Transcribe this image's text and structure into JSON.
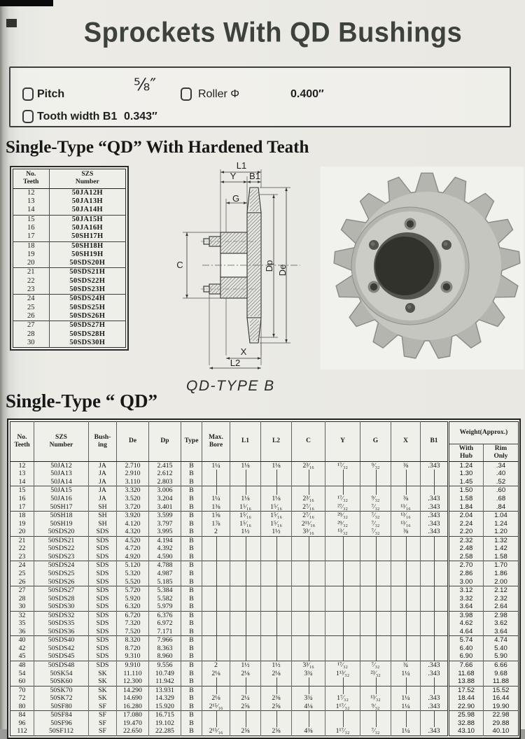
{
  "page": {
    "title": "Sprockets With QD Bushings"
  },
  "specs": {
    "pitch_label": "Pitch",
    "pitch_value": "⅝″",
    "roller_label": "Roller Φ",
    "roller_value": "0.400″",
    "tooth_label": "Tooth width B1",
    "tooth_value": "0.343″"
  },
  "section1": {
    "title": "Single-Type “QD” With Hardened Teath"
  },
  "hardened_table": {
    "headers": [
      "No.\nTeeth",
      "SZS\nNumber"
    ],
    "groups": [
      [
        [
          "12",
          "50JA12H"
        ],
        [
          "13",
          "50JA13H"
        ],
        [
          "14",
          "50JA14H"
        ]
      ],
      [
        [
          "15",
          "50JA15H"
        ],
        [
          "16",
          "50JA16H"
        ],
        [
          "17",
          "50SH17H"
        ]
      ],
      [
        [
          "18",
          "50SH18H"
        ],
        [
          "19",
          "50SH19H"
        ],
        [
          "20",
          "50SDS20H"
        ]
      ],
      [
        [
          "21",
          "50SDS21H"
        ],
        [
          "22",
          "50SDS22H"
        ],
        [
          "23",
          "50SDS23H"
        ]
      ],
      [
        [
          "24",
          "50SDS24H"
        ],
        [
          "25",
          "50SDS25H"
        ],
        [
          "26",
          "50SDS26H"
        ]
      ],
      [
        [
          "27",
          "50SDS27H"
        ],
        [
          "28",
          "50SDS28H"
        ],
        [
          "30",
          "50SDS30H"
        ]
      ]
    ]
  },
  "drawing": {
    "labels": [
      "L1",
      "Y",
      "B1",
      "G",
      "C",
      "Dp",
      "De",
      "X",
      "L2"
    ],
    "caption": "QD-TYPE B"
  },
  "section2": {
    "title": "Single-Type “ QD”"
  },
  "main_table": {
    "headers": [
      "No.\nTeeth",
      "SZS\nNumber",
      "Bush-\ning",
      "De",
      "Dp",
      "Type",
      "Max.\nBore",
      "L1",
      "L2",
      "C",
      "Y",
      "G",
      "X",
      "B1"
    ],
    "weight_group": "Weight(Approx.)",
    "weight_sub": [
      "With\nHub",
      "Rim\nOnly"
    ],
    "groups": [
      [
        [
          "12",
          "50JA12",
          "JA",
          "2.710",
          "2.415",
          "B",
          "1¼",
          "1⅛",
          "1⅛",
          "2³⁄₁₆",
          "¹⁷⁄₃₂",
          "⁹⁄₃₂",
          "⅜",
          ".343",
          "1.24",
          ".34"
        ],
        [
          "13",
          "50JA13",
          "JA",
          "2.910",
          "2.612",
          "B",
          "|",
          "|",
          "|",
          "|",
          "|",
          "|",
          "|",
          "|",
          "1.30",
          ".40"
        ],
        [
          "14",
          "50JA14",
          "JA",
          "3.110",
          "2.803",
          "B",
          "|",
          "|",
          "|",
          "|",
          "|",
          "|",
          "|",
          "|",
          "1.45",
          ".52"
        ]
      ],
      [
        [
          "15",
          "50JA15",
          "JA",
          "3.320",
          "3.006",
          "B",
          "|",
          "|",
          "|",
          "|",
          "|",
          "|",
          "|",
          "|",
          "1.50",
          ".60"
        ],
        [
          "16",
          "50JA16",
          "JA",
          "3.520",
          "3.204",
          "B",
          "1¼",
          "1⅛",
          "1⅛",
          "2³⁄₁₆",
          "¹⁷⁄₃₂",
          "⁹⁄₃₂",
          "⅜",
          ".343",
          "1.58",
          ".68"
        ],
        [
          "17",
          "50SH17",
          "SH",
          "3.720",
          "3.401",
          "B",
          "1⅜",
          "1⁵⁄₁₆",
          "1⁵⁄₁₆",
          "2⁷⁄₁₆",
          "²⁷⁄₃₂",
          "⁷⁄₃₂",
          "¹³⁄₁₆",
          ".343",
          "1.84",
          ".84"
        ]
      ],
      [
        [
          "18",
          "50SH18",
          "SH",
          "3.920",
          "3.599",
          "B",
          "1⅝",
          "1⁵⁄₁₆",
          "1⁵⁄₁₆",
          "2⁷⁄₁₆",
          "²⁹⁄₃₂",
          "⁷⁄₃₂",
          "¹³⁄₁₆",
          ".343",
          "2.04",
          "1.04"
        ],
        [
          "19",
          "50SH19",
          "SH",
          "4.120",
          "3.797",
          "B",
          "1⅞",
          "1⁵⁄₁₆",
          "1⁵⁄₁₆",
          "2¹¹⁄₁₆",
          "²⁹⁄₃₂",
          "⁷⁄₃₂",
          "¹³⁄₁₆",
          ".343",
          "2.24",
          "1.24"
        ],
        [
          "20",
          "50SDS20",
          "SDS",
          "4.320",
          "3.995",
          "B",
          "2",
          "1½",
          "1½",
          "3³⁄₁₆",
          "¹³⁄₃₂",
          "⁷⁄₃₂",
          "⅜",
          ".343",
          "2.20",
          "1.20"
        ]
      ],
      [
        [
          "21",
          "50SDS21",
          "SDS",
          "4.520",
          "4.194",
          "B",
          "|",
          "|",
          "|",
          "|",
          "|",
          "|",
          "|",
          "|",
          "2.32",
          "1.32"
        ],
        [
          "22",
          "50SDS22",
          "SDS",
          "4.720",
          "4.392",
          "B",
          "|",
          "|",
          "|",
          "|",
          "|",
          "|",
          "|",
          "|",
          "2.48",
          "1.42"
        ],
        [
          "23",
          "50SDS23",
          "SDS",
          "4.920",
          "4.590",
          "B",
          "|",
          "|",
          "|",
          "|",
          "|",
          "|",
          "|",
          "|",
          "2.58",
          "1.58"
        ]
      ],
      [
        [
          "24",
          "50SDS24",
          "SDS",
          "5.120",
          "4.788",
          "B",
          "|",
          "|",
          "|",
          "|",
          "|",
          "|",
          "|",
          "|",
          "2.70",
          "1.70"
        ],
        [
          "25",
          "50SDS25",
          "SDS",
          "5.320",
          "4.987",
          "B",
          "|",
          "|",
          "|",
          "|",
          "|",
          "|",
          "|",
          "|",
          "2.86",
          "1.86"
        ],
        [
          "26",
          "50SDS26",
          "SDS",
          "5.520",
          "5.185",
          "B",
          "|",
          "|",
          "|",
          "|",
          "|",
          "|",
          "|",
          "|",
          "3.00",
          "2.00"
        ]
      ],
      [
        [
          "27",
          "50SDS27",
          "SDS",
          "5.720",
          "5.384",
          "B",
          "|",
          "|",
          "|",
          "|",
          "|",
          "|",
          "|",
          "|",
          "3.12",
          "2.12"
        ],
        [
          "28",
          "50SDS28",
          "SDS",
          "5.920",
          "5.582",
          "B",
          "|",
          "|",
          "|",
          "|",
          "|",
          "|",
          "|",
          "|",
          "3.32",
          "2.32"
        ],
        [
          "30",
          "50SDS30",
          "SDS",
          "6.320",
          "5.979",
          "B",
          "|",
          "|",
          "|",
          "|",
          "|",
          "|",
          "|",
          "|",
          "3.64",
          "2.64"
        ]
      ],
      [
        [
          "32",
          "50SDS32",
          "SDS",
          "6.720",
          "6.376",
          "B",
          "|",
          "|",
          "|",
          "|",
          "|",
          "|",
          "|",
          "|",
          "3.98",
          "2.98"
        ],
        [
          "35",
          "50SDS35",
          "SDS",
          "7.320",
          "6.972",
          "B",
          "|",
          "|",
          "|",
          "|",
          "|",
          "|",
          "|",
          "|",
          "4.62",
          "3.62"
        ],
        [
          "36",
          "50SDS36",
          "SDS",
          "7.520",
          "7.171",
          "B",
          "|",
          "|",
          "|",
          "|",
          "|",
          "|",
          "|",
          "|",
          "4.64",
          "3.64"
        ]
      ],
      [
        [
          "40",
          "50SDS40",
          "SDS",
          "8.320",
          "7.966",
          "B",
          "|",
          "|",
          "|",
          "|",
          "|",
          "|",
          "|",
          "|",
          "5.74",
          "4.74"
        ],
        [
          "42",
          "50SDS42",
          "SDS",
          "8.720",
          "8.363",
          "B",
          "|",
          "|",
          "|",
          "|",
          "|",
          "|",
          "|",
          "|",
          "6.40",
          "5.40"
        ],
        [
          "45",
          "50SDS45",
          "SDS",
          "9.310",
          "8.960",
          "B",
          "|",
          "|",
          "|",
          "|",
          "|",
          "|",
          "|",
          "|",
          "6.90",
          "5.90"
        ]
      ],
      [
        [
          "48",
          "50SDS48",
          "SDS",
          "9.910",
          "9.556",
          "B",
          "2",
          "1½",
          "1½",
          "3³⁄₁₆",
          "¹⁷⁄₃₂",
          "⁷⁄₃₂",
          "¾",
          ".343",
          "7.66",
          "6.66"
        ],
        [
          "54",
          "50SK54",
          "SK",
          "11.110",
          "10.749",
          "B",
          "2⅛",
          "2⅛",
          "2⅛",
          "3¾",
          "1¹³⁄₃₂",
          "²³⁄₃₂",
          "1¼",
          ".343",
          "11.68",
          "9.68"
        ],
        [
          "60",
          "50SK60",
          "SK",
          "12.300",
          "11.942",
          "B",
          "|",
          "|",
          "|",
          "|",
          "|",
          "|",
          "|",
          "|",
          "13.88",
          "11.88"
        ]
      ],
      [
        [
          "70",
          "50SK70",
          "SK",
          "14.290",
          "13.931",
          "B",
          "|",
          "|",
          "|",
          "|",
          "|",
          "|",
          "|",
          "|",
          "17.52",
          "15.52"
        ],
        [
          "72",
          "50SK72",
          "SK",
          "14.690",
          "14.329",
          "B",
          "2⅛",
          "2¼",
          "2⅜",
          "3¾",
          "1⁷⁄₃₂",
          "¹³⁄₃₂",
          "1¼",
          ".343",
          "18.44",
          "16.44"
        ],
        [
          "80",
          "50SF80",
          "SF",
          "16.280",
          "15.920",
          "B",
          "2¹⁵⁄₁₆",
          "2⅝",
          "2⅝",
          "4⅛",
          "1¹⁷⁄₃₂",
          "⁹⁄₃₂",
          "1¼",
          ".343",
          "22.90",
          "19.90"
        ]
      ],
      [
        [
          "84",
          "50SF84",
          "SF",
          "17.080",
          "16.715",
          "B",
          "|",
          "|",
          "|",
          "|",
          "|",
          "|",
          "|",
          "|",
          "25.98",
          "22.98"
        ],
        [
          "96",
          "50SF96",
          "SF",
          "19.470",
          "19.102",
          "B",
          "|",
          "|",
          "|",
          "|",
          "|",
          "|",
          "|",
          "|",
          "32.88",
          "29.88"
        ],
        [
          "112",
          "50SF112",
          "SF",
          "22.650",
          "22.285",
          "B",
          "2¹⁵⁄₁₆",
          "2⅝",
          "2⅝",
          "4⅜",
          "1¹⁷⁄₃₂",
          "⁷⁄₃₂",
          "1¼",
          ".343",
          "43.10",
          "40.10"
        ]
      ]
    ]
  }
}
